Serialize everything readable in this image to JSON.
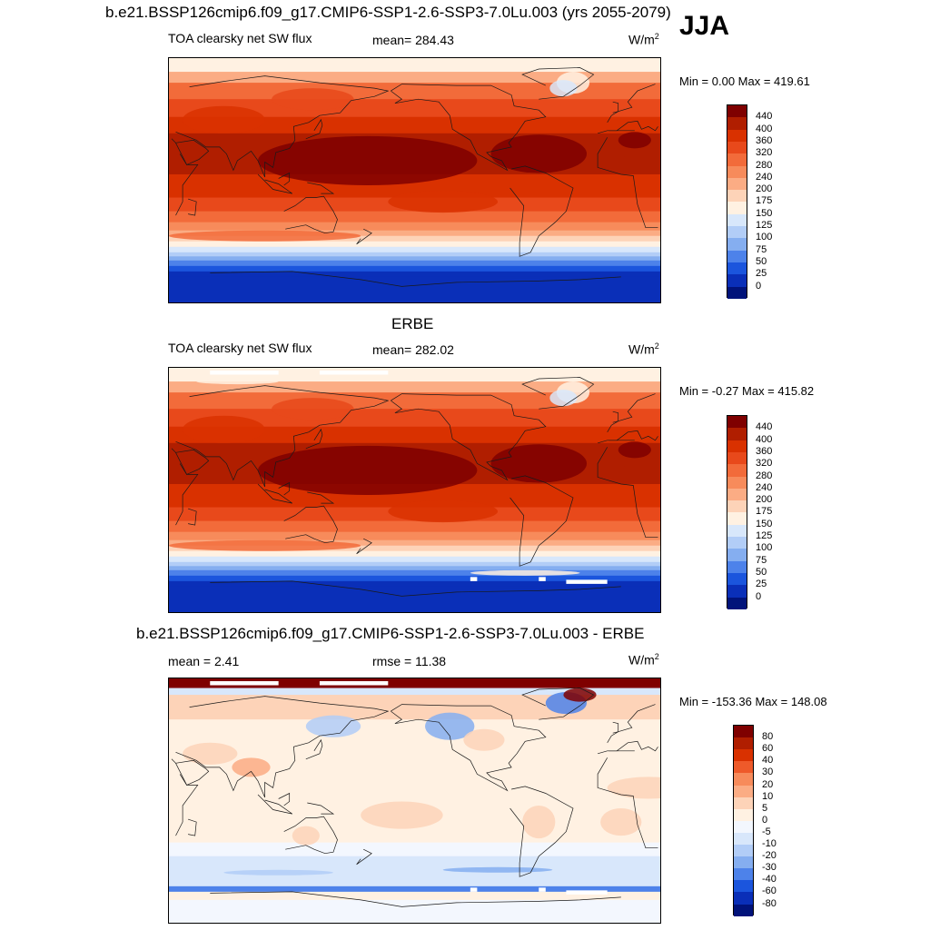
{
  "season": "JJA",
  "panels": [
    {
      "title": "b.e21.BSSP126cmip6.f09_g17.CMIP6-SSP1-2.6-SSP3-7.0Lu.003 (yrs 2055-2079)",
      "left_label": "TOA clearsky net SW flux",
      "center_label": "mean= 284.43",
      "units": "W/m",
      "units_sup": "2",
      "minmax": "Min =   0.00 Max = 419.61"
    },
    {
      "title": "ERBE",
      "left_label": "TOA clearsky net SW flux",
      "center_label": "mean= 282.02",
      "units": "W/m",
      "units_sup": "2",
      "minmax": "Min =  -0.27 Max = 415.82"
    },
    {
      "title": "b.e21.BSSP126cmip6.f09_g17.CMIP6-SSP1-2.6-SSP3-7.0Lu.003 - ERBE",
      "left_label": "mean =   2.41",
      "center_label": "rmse =  11.38",
      "units": "W/m",
      "units_sup": "2",
      "minmax": "Min = -153.36 Max = 148.08"
    }
  ],
  "chart_data": [
    {
      "type": "heatmap",
      "title": "b.e21.BSSP126cmip6.f09_g17.CMIP6-SSP1-2.6-SSP3-7.0Lu.003 (yrs 2055-2079)",
      "variable": "TOA clearsky net SW flux",
      "mean": 284.43,
      "min": 0.0,
      "max": 419.61,
      "colorbar_levels": [
        "440",
        "400",
        "360",
        "320",
        "280",
        "240",
        "200",
        "175",
        "150",
        "125",
        "100",
        "75",
        "50",
        "25",
        "0"
      ],
      "colorbar_colors": [
        "#7f0000",
        "#b01e00",
        "#d93100",
        "#e8491b",
        "#f26b3a",
        "#f78b5b",
        "#fbac84",
        "#fdd3b8",
        "#fff1e2",
        "#d8e7fb",
        "#b2cdf7",
        "#85aef0",
        "#4d82ea",
        "#1b55dd",
        "#0a2fb8",
        "#01137a"
      ]
    },
    {
      "type": "heatmap",
      "title": "ERBE",
      "variable": "TOA clearsky net SW flux",
      "mean": 282.02,
      "min": -0.27,
      "max": 415.82,
      "colorbar_levels": [
        "440",
        "400",
        "360",
        "320",
        "280",
        "240",
        "200",
        "175",
        "150",
        "125",
        "100",
        "75",
        "50",
        "25",
        "0"
      ],
      "colorbar_colors": [
        "#7f0000",
        "#b01e00",
        "#d93100",
        "#e8491b",
        "#f26b3a",
        "#f78b5b",
        "#fbac84",
        "#fdd3b8",
        "#fff1e2",
        "#d8e7fb",
        "#b2cdf7",
        "#85aef0",
        "#4d82ea",
        "#1b55dd",
        "#0a2fb8",
        "#01137a"
      ]
    },
    {
      "type": "heatmap",
      "title": "b.e21.BSSP126cmip6.f09_g17.CMIP6-SSP1-2.6-SSP3-7.0Lu.003 - ERBE",
      "mean": 2.41,
      "rmse": 11.38,
      "min": -153.36,
      "max": 148.08,
      "colorbar_levels": [
        "80",
        "60",
        "40",
        "30",
        "20",
        "10",
        "5",
        "0",
        "-5",
        "-10",
        "-20",
        "-30",
        "-40",
        "-60",
        "-80"
      ],
      "colorbar_colors": [
        "#7f0000",
        "#b01e00",
        "#d93100",
        "#ee5a2a",
        "#f78b5b",
        "#fbac84",
        "#fdd3b8",
        "#fff1e2",
        "#f3f7fe",
        "#d8e7fb",
        "#b2cdf7",
        "#85aef0",
        "#4d82ea",
        "#1b55dd",
        "#0a2fb8",
        "#01137a"
      ]
    }
  ]
}
